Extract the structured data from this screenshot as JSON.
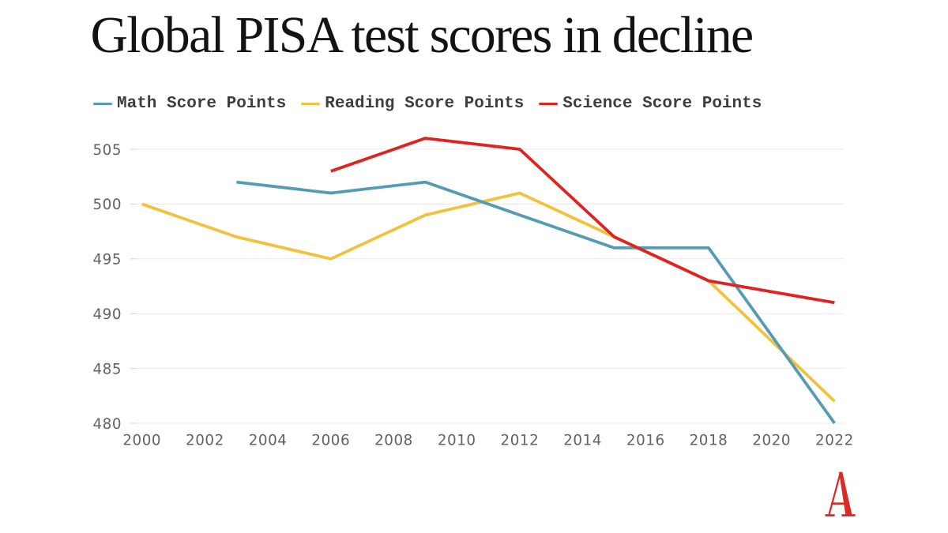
{
  "title": "Global PISA test scores in decline",
  "brand": {
    "logo": "axios-a-logo",
    "logo_color": "#D92A26"
  },
  "colors": {
    "background": "#FFFFFF",
    "title_text": "#131313",
    "legend_text": "#3E3E3E",
    "tick_text": "#646464",
    "gridline": "#E9E9E9",
    "gridline_tick": "#D7D7D7",
    "math": "#549BB6",
    "reading": "#F2C23C",
    "science": "#E02322"
  },
  "legend": {
    "items": [
      {
        "label": "Math Score Points",
        "color": "#549BB6"
      },
      {
        "label": "Reading Score Points",
        "color": "#F2C23C"
      },
      {
        "label": "Science Score Points",
        "color": "#E02322"
      }
    ]
  },
  "chart_data": {
    "type": "line",
    "title": "Global PISA test scores in decline",
    "xlabel": "",
    "ylabel": "",
    "xlim": [
      2000,
      2022
    ],
    "ylim": [
      480,
      506.2
    ],
    "x_ticks": [
      2000,
      2002,
      2004,
      2006,
      2008,
      2010,
      2012,
      2014,
      2016,
      2018,
      2020,
      2022
    ],
    "y_ticks": [
      480,
      485,
      490,
      495,
      500,
      505
    ],
    "grid": "horizontal",
    "legend_position": "top",
    "series": [
      {
        "name": "Math Score Points",
        "color": "#549BB6",
        "x": [
          2003,
          2006,
          2009,
          2012,
          2015,
          2018,
          2022
        ],
        "values": [
          502,
          501,
          502,
          499,
          496,
          496,
          480
        ]
      },
      {
        "name": "Reading Score Points",
        "color": "#F2C23C",
        "x": [
          2000,
          2003,
          2006,
          2009,
          2012,
          2015,
          2018,
          2022
        ],
        "values": [
          500,
          497,
          495,
          499,
          501,
          497,
          493,
          482
        ]
      },
      {
        "name": "Science Score Points",
        "color": "#E02322",
        "x": [
          2006,
          2009,
          2012,
          2015,
          2018,
          2022
        ],
        "values": [
          503,
          506,
          505,
          497,
          493,
          491
        ]
      }
    ]
  }
}
